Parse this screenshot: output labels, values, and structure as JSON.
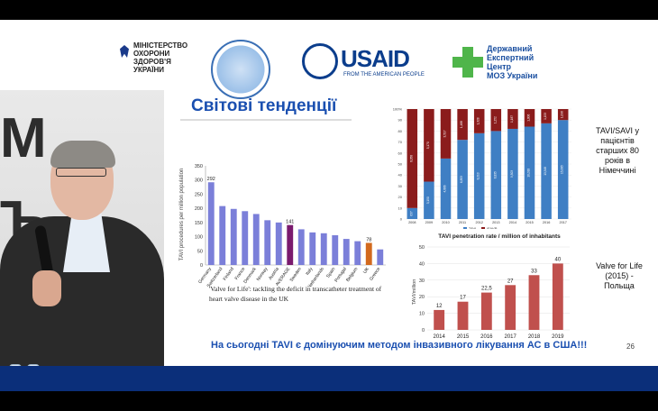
{
  "ministry": {
    "lines": [
      "МІНІСТЕРСТВО",
      "ОХОРОНИ",
      "ЗДОРОВ'Я",
      "УКРАЇНИ"
    ]
  },
  "usaid": {
    "name": "USAID",
    "tagline": "FROM THE AMERICAN PEOPLE"
  },
  "expert_center": {
    "lines": [
      "Державний",
      "Експертний",
      "Центр",
      "МОЗ України"
    ]
  },
  "slide": {
    "title": "Світові тенденції",
    "caption": "'Valve for Life': tackling the deficit in transcatheter treatment of heart valve disease in the UK",
    "footer": "На сьогодні TAVI є домінуючим методом інвазивного лікування АС в США!!!",
    "page_number": "26"
  },
  "notes": {
    "germany": [
      "TAVI/SAVI у",
      "пацієнтів",
      "старших 80",
      "років в",
      "Німеччині"
    ],
    "poland": [
      "Valve for Life",
      "(2015) -",
      "Польща"
    ]
  },
  "colors": {
    "bar_blue": "#7b7fd9",
    "highlight_purple": "#7a1a6e",
    "highlight_orange": "#d2691e",
    "tavi_blue": "#3f7fc4",
    "savr_red": "#8b1c1c",
    "penetration_red": "#c0504d"
  },
  "chart_data": [
    {
      "type": "bar",
      "ylabel": "TAVI procedures per million population",
      "ylim": [
        0,
        350
      ],
      "yticks": [
        0,
        50,
        100,
        150,
        200,
        250,
        300,
        350
      ],
      "categories": [
        "Germany",
        "Switzerland",
        "Finland",
        "France",
        "Denmark",
        "Norway",
        "Austria",
        "AVERAGE",
        "Sweden",
        "Italy",
        "Netherlands",
        "Spain",
        "Portugal",
        "Belgium",
        "UK",
        "Greece"
      ],
      "values": [
        292,
        208,
        198,
        190,
        180,
        158,
        150,
        141,
        126,
        115,
        112,
        105,
        92,
        84,
        78,
        55
      ],
      "data_labels": {
        "Germany": "292",
        "AVERAGE": "141",
        "UK": "78"
      }
    },
    {
      "type": "bar",
      "stacked": true,
      "ylim": [
        0,
        100
      ],
      "yticks": [
        "0",
        "10",
        "20",
        "30",
        "40",
        "50",
        "60",
        "70",
        "80",
        "90",
        "100"
      ],
      "ytick_suffix": "%",
      "categories": [
        "2008",
        "2009",
        "2010",
        "2011",
        "2012",
        "2013",
        "2014",
        "2015",
        "2016",
        "2017"
      ],
      "series": [
        {
          "name": "TAVI",
          "values": [
            10,
            34,
            55,
            72,
            78,
            80,
            82,
            84,
            87,
            90
          ],
          "labels": [
            "637",
            "3,150",
            "4,866",
            "6,853",
            "8,213",
            "8,835",
            "9,303",
            "10,018",
            "13,348",
            "15,085"
          ]
        },
        {
          "name": "iSAVR",
          "values": [
            90,
            66,
            45,
            28,
            22,
            20,
            18,
            16,
            13,
            10
          ],
          "labels": [
            "8,058",
            "5,170",
            "3,517",
            "1,488",
            "1,328",
            "1,252",
            "1,187",
            "1,006",
            "1,153",
            "1,096"
          ]
        }
      ]
    },
    {
      "type": "bar",
      "title": "TAVI penetration rate / million of inhabitants",
      "ylabel": "TAVI/million",
      "ylim": [
        0,
        50
      ],
      "yticks": [
        0,
        10,
        20,
        30,
        40,
        50
      ],
      "categories": [
        "2014",
        "2015",
        "2016",
        "2017",
        "2018",
        "2019"
      ],
      "values": [
        12,
        17,
        22.5,
        27,
        33,
        40
      ],
      "data_labels": [
        "12",
        "17",
        "22,5",
        "27",
        "33",
        "40"
      ]
    }
  ]
}
